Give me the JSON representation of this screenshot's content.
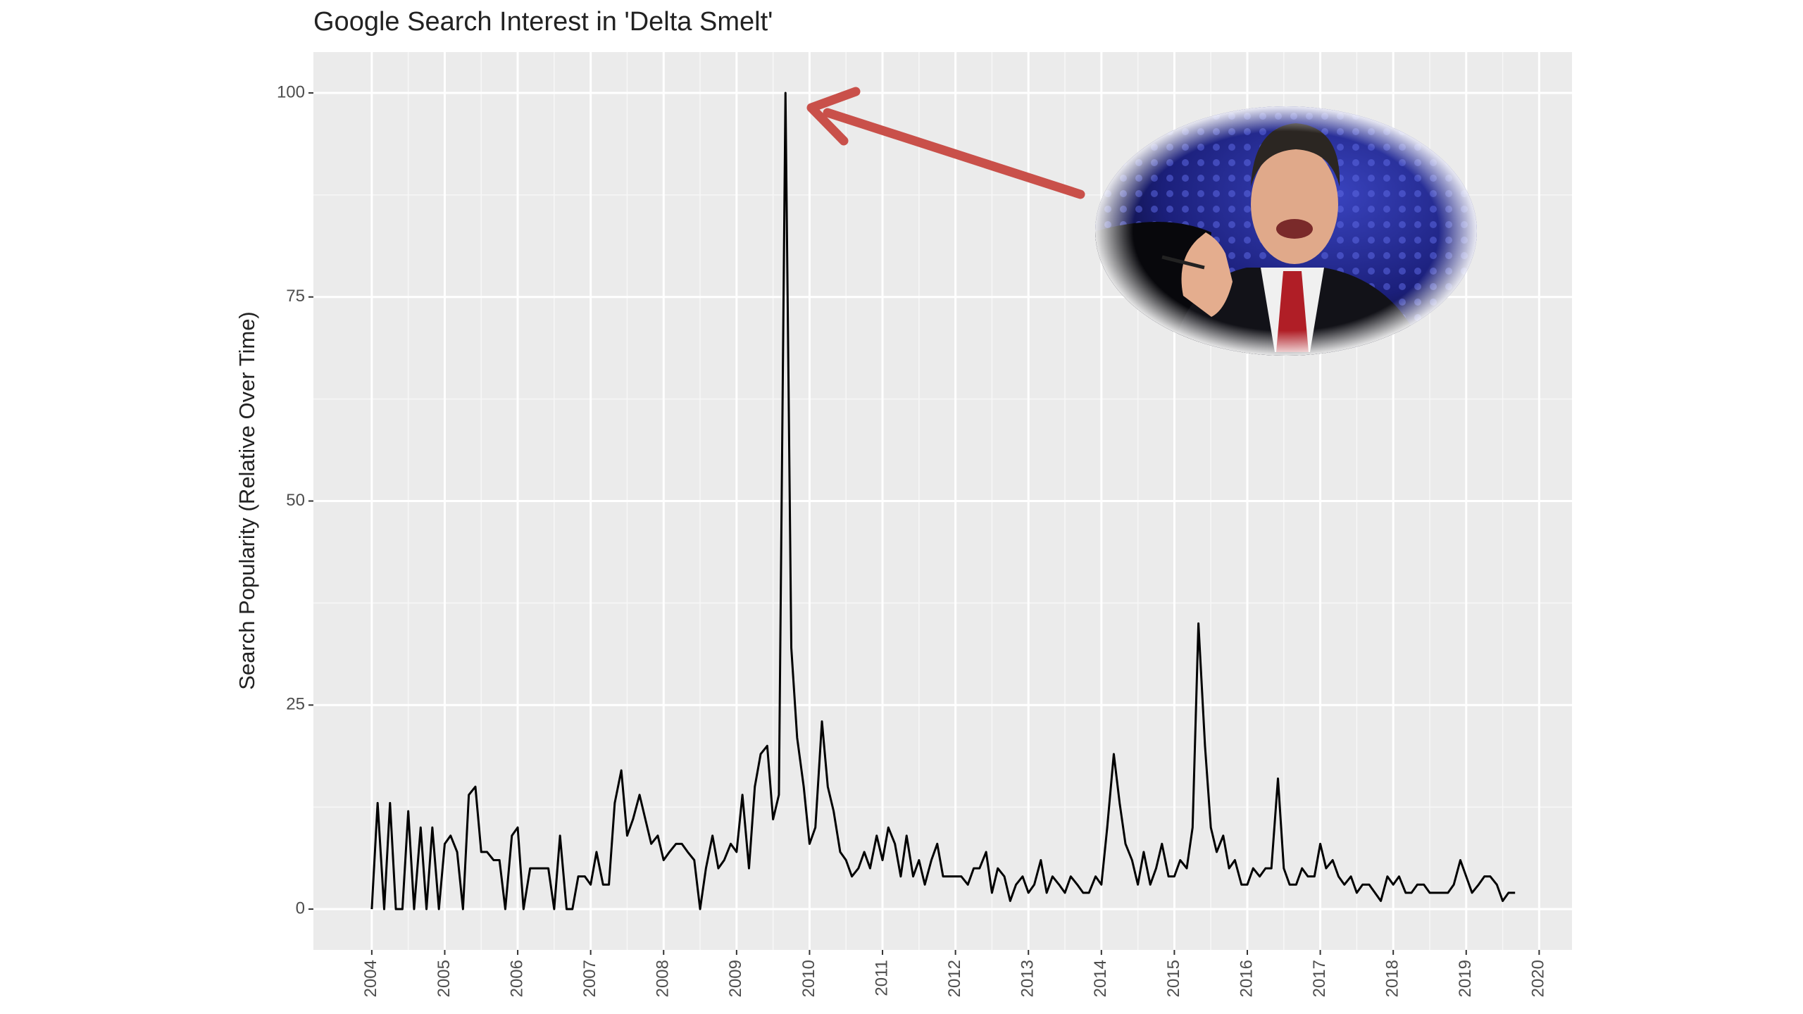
{
  "chart_data": {
    "type": "line",
    "title": "Google Search Interest in 'Delta Smelt'",
    "y_label": "Search Popularity (Relative Over Time)",
    "x": [
      2004,
      2004.08,
      2004.17,
      2004.25,
      2004.33,
      2004.42,
      2004.5,
      2004.58,
      2004.67,
      2004.75,
      2004.83,
      2004.92,
      2005,
      2005.08,
      2005.17,
      2005.25,
      2005.33,
      2005.42,
      2005.5,
      2005.58,
      2005.67,
      2005.75,
      2005.83,
      2005.92,
      2006,
      2006.08,
      2006.17,
      2006.25,
      2006.33,
      2006.42,
      2006.5,
      2006.58,
      2006.67,
      2006.75,
      2006.83,
      2006.92,
      2007,
      2007.08,
      2007.17,
      2007.25,
      2007.33,
      2007.42,
      2007.5,
      2007.58,
      2007.67,
      2007.75,
      2007.83,
      2007.92,
      2008,
      2008.08,
      2008.17,
      2008.25,
      2008.33,
      2008.42,
      2008.5,
      2008.58,
      2008.67,
      2008.75,
      2008.83,
      2008.92,
      2009,
      2009.08,
      2009.17,
      2009.25,
      2009.33,
      2009.42,
      2009.5,
      2009.58,
      2009.67,
      2009.75,
      2009.83,
      2009.92,
      2010,
      2010.08,
      2010.17,
      2010.25,
      2010.33,
      2010.42,
      2010.5,
      2010.58,
      2010.67,
      2010.75,
      2010.83,
      2010.92,
      2011,
      2011.08,
      2011.17,
      2011.25,
      2011.33,
      2011.42,
      2011.5,
      2011.58,
      2011.67,
      2011.75,
      2011.83,
      2011.92,
      2012,
      2012.08,
      2012.17,
      2012.25,
      2012.33,
      2012.42,
      2012.5,
      2012.58,
      2012.67,
      2012.75,
      2012.83,
      2012.92,
      2013,
      2013.08,
      2013.17,
      2013.25,
      2013.33,
      2013.42,
      2013.5,
      2013.58,
      2013.67,
      2013.75,
      2013.83,
      2013.92,
      2014,
      2014.08,
      2014.17,
      2014.25,
      2014.33,
      2014.42,
      2014.5,
      2014.58,
      2014.67,
      2014.75,
      2014.83,
      2014.92,
      2015,
      2015.08,
      2015.17,
      2015.25,
      2015.33,
      2015.42,
      2015.5,
      2015.58,
      2015.67,
      2015.75,
      2015.83,
      2015.92,
      2016,
      2016.08,
      2016.17,
      2016.25,
      2016.33,
      2016.42,
      2016.5,
      2016.58,
      2016.67,
      2016.75,
      2016.83,
      2016.92,
      2017,
      2017.08,
      2017.17,
      2017.25,
      2017.33,
      2017.42,
      2017.5,
      2017.58,
      2017.67,
      2017.75,
      2017.83,
      2017.92,
      2018,
      2018.08,
      2018.17,
      2018.25,
      2018.33,
      2018.42,
      2018.5,
      2018.58,
      2018.67,
      2018.75,
      2018.83,
      2018.92,
      2019,
      2019.08,
      2019.17,
      2019.25,
      2019.33,
      2019.42,
      2019.5,
      2019.58,
      2019.67
    ],
    "values": [
      0,
      13,
      0,
      13,
      0,
      0,
      12,
      0,
      10,
      0,
      10,
      0,
      8,
      9,
      7,
      0,
      14,
      15,
      7,
      7,
      6,
      6,
      0,
      9,
      10,
      0,
      5,
      5,
      5,
      5,
      0,
      9,
      0,
      0,
      4,
      4,
      3,
      7,
      3,
      3,
      13,
      17,
      9,
      11,
      14,
      11,
      8,
      9,
      6,
      7,
      8,
      8,
      7,
      6,
      0,
      5,
      9,
      5,
      6,
      8,
      7,
      14,
      5,
      15,
      19,
      20,
      11,
      14,
      100,
      32,
      21,
      15,
      8,
      10,
      23,
      15,
      12,
      7,
      6,
      4,
      5,
      7,
      5,
      9,
      6,
      10,
      8,
      4,
      9,
      4,
      6,
      3,
      6,
      8,
      4,
      4,
      4,
      4,
      3,
      5,
      5,
      7,
      2,
      5,
      4,
      1,
      3,
      4,
      2,
      3,
      6,
      2,
      4,
      3,
      2,
      4,
      3,
      2,
      2,
      4,
      3,
      10,
      19,
      13,
      8,
      6,
      3,
      7,
      3,
      5,
      8,
      4,
      4,
      6,
      5,
      10,
      35,
      20,
      10,
      7,
      9,
      5,
      6,
      3,
      3,
      5,
      4,
      5,
      5,
      16,
      5,
      3,
      3,
      5,
      4,
      4,
      8,
      5,
      6,
      4,
      3,
      4,
      2,
      3,
      3,
      2,
      1,
      4,
      3,
      4,
      2,
      2,
      3,
      3,
      2,
      2,
      2,
      2,
      3,
      6,
      4,
      2,
      3,
      4,
      4,
      3,
      1,
      2,
      2
    ],
    "color": "#000000",
    "xlim": [
      2003.2,
      2020.45
    ],
    "ylim": [
      -5,
      105
    ],
    "xticks": [
      2004,
      2005,
      2006,
      2007,
      2008,
      2009,
      2010,
      2011,
      2012,
      2013,
      2014,
      2015,
      2016,
      2017,
      2018,
      2019,
      2020
    ],
    "yticks": [
      0,
      25,
      50,
      75,
      100
    ],
    "grid": true
  }
}
